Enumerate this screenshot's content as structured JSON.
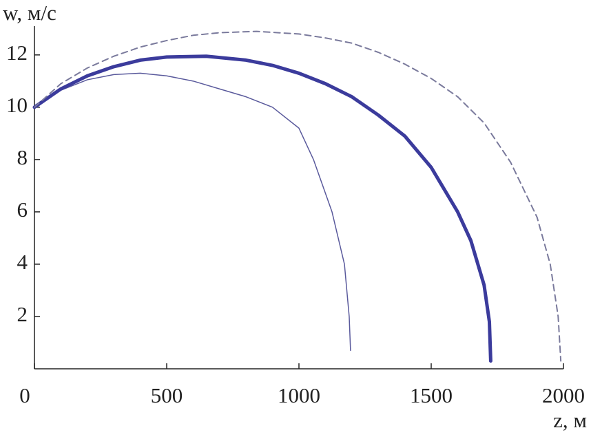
{
  "chart_data": {
    "type": "line",
    "y_label": "w, м/с",
    "x_label": "z, м",
    "xlim": [
      0,
      2000
    ],
    "ylim": [
      0,
      13.1
    ],
    "xticks": [
      0,
      500,
      1000,
      1500,
      2000
    ],
    "yticks": [
      2,
      4,
      6,
      8,
      10,
      12
    ],
    "series": [
      {
        "color": "#5a5a9c",
        "width": 1.5,
        "dash": false,
        "x": [
          0,
          100,
          200,
          300,
          400,
          500,
          600,
          700,
          800,
          900,
          1000,
          1055,
          1125,
          1172,
          1190,
          1195
        ],
        "values": [
          10,
          10.65,
          11.05,
          11.25,
          11.3,
          11.2,
          11.0,
          10.7,
          10.4,
          10.0,
          9.2,
          8,
          6,
          4,
          2,
          0.7
        ]
      },
      {
        "color": "#3b3b9c",
        "width": 5,
        "dash": false,
        "x": [
          0,
          100,
          200,
          300,
          400,
          500,
          650,
          800,
          900,
          1000,
          1100,
          1200,
          1300,
          1400,
          1500,
          1600,
          1650,
          1700,
          1720,
          1725
        ],
        "values": [
          10,
          10.7,
          11.2,
          11.55,
          11.8,
          11.92,
          11.95,
          11.8,
          11.6,
          11.3,
          10.9,
          10.4,
          9.7,
          8.9,
          7.7,
          6.0,
          4.9,
          3.2,
          1.8,
          0.3
        ]
      },
      {
        "color": "#7a7a9c",
        "width": 2,
        "dash": true,
        "x": [
          0,
          100,
          200,
          300,
          400,
          500,
          600,
          700,
          840,
          1000,
          1100,
          1200,
          1300,
          1400,
          1500,
          1600,
          1700,
          1800,
          1900,
          1950,
          1980,
          1990
        ],
        "values": [
          10,
          10.9,
          11.5,
          11.95,
          12.3,
          12.55,
          12.75,
          12.85,
          12.9,
          12.8,
          12.65,
          12.45,
          12.1,
          11.65,
          11.1,
          10.4,
          9.4,
          7.9,
          5.8,
          4.0,
          2.0,
          0.3
        ]
      }
    ]
  }
}
